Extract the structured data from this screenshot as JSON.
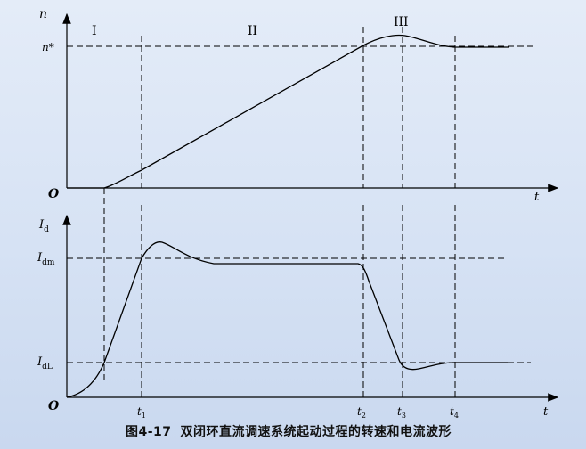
{
  "top_graph": {
    "y_axis_label": "n",
    "x_axis_label": "t",
    "origin_label": "O",
    "n_star_label": "n*",
    "stage_labels": [
      "I",
      "II",
      "III"
    ]
  },
  "bottom_graph": {
    "y_axis_label": "Id",
    "x_axis_label": "t",
    "origin_label": "O",
    "idm_label": "Idm",
    "idl_label": "IdL",
    "time_labels": [
      "t1",
      "t2",
      "t3",
      "t4"
    ]
  },
  "caption": {
    "figure_number": "图4-17",
    "text": "双闭环直流调速系统起动过程的转速和电流波形"
  },
  "colors": {
    "line": "#000000",
    "background": "#dce6f5"
  }
}
